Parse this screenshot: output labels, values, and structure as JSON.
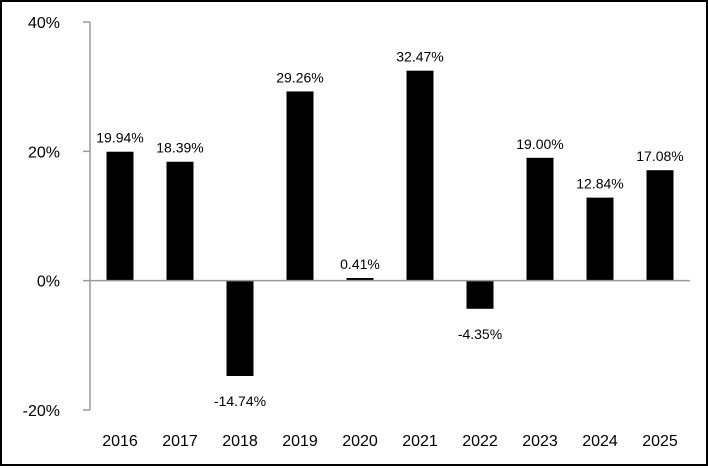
{
  "chart_data": {
    "type": "bar",
    "title": "",
    "xlabel": "",
    "ylabel": "",
    "categories": [
      "2016",
      "2017",
      "2018",
      "2019",
      "2020",
      "2021",
      "2022",
      "2023",
      "2024",
      "2025"
    ],
    "values": [
      19.94,
      18.39,
      -14.74,
      29.26,
      0.41,
      32.47,
      -4.35,
      19.0,
      12.84,
      17.08
    ],
    "value_labels": [
      "19.94%",
      "18.39%",
      "-14.74%",
      "29.26%",
      "0.41%",
      "32.47%",
      "-4.35%",
      "19.00%",
      "12.84%",
      "17.08%"
    ],
    "ylim": [
      -20,
      40
    ],
    "yticks": [
      -20,
      0,
      20,
      40
    ],
    "ytick_labels": [
      "-20%",
      "0%",
      "20%",
      "40%"
    ],
    "grid": false,
    "legend": "none",
    "bar_color": "#000000"
  }
}
